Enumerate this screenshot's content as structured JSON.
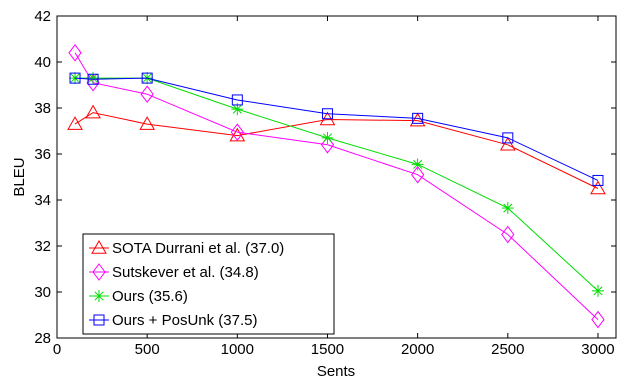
{
  "chart_data": {
    "type": "line",
    "xlabel": "Sents",
    "ylabel": "BLEU",
    "xlim": [
      0,
      3100
    ],
    "ylim": [
      28,
      42
    ],
    "xticks": [
      0,
      500,
      1000,
      1500,
      2000,
      2500,
      3000
    ],
    "yticks": [
      28,
      30,
      32,
      34,
      36,
      38,
      40,
      42
    ],
    "grid": false,
    "legend_position": "bottom-left",
    "x": [
      100,
      200,
      500,
      1000,
      1500,
      2000,
      2500,
      3000
    ],
    "series": [
      {
        "name": "SOTA Durrani et al. (37.0)",
        "color": "#ff0000",
        "marker": "triangle",
        "values": [
          37.3,
          37.8,
          37.3,
          36.8,
          37.5,
          37.45,
          36.4,
          34.5
        ]
      },
      {
        "name": "Sutskever et al. (34.8)",
        "color": "#ff00ff",
        "marker": "diamond",
        "values": [
          40.4,
          39.1,
          38.6,
          36.95,
          36.4,
          35.1,
          32.5,
          28.8
        ]
      },
      {
        "name": "Ours (35.6)",
        "color": "#00dd00",
        "marker": "asterisk",
        "values": [
          39.3,
          39.3,
          39.3,
          37.95,
          36.7,
          35.55,
          33.65,
          30.05
        ]
      },
      {
        "name": "Ours + PosUnk (37.5)",
        "color": "#0000ff",
        "marker": "square",
        "values": [
          39.3,
          39.25,
          39.3,
          38.35,
          37.75,
          37.55,
          36.7,
          34.85
        ]
      }
    ]
  }
}
